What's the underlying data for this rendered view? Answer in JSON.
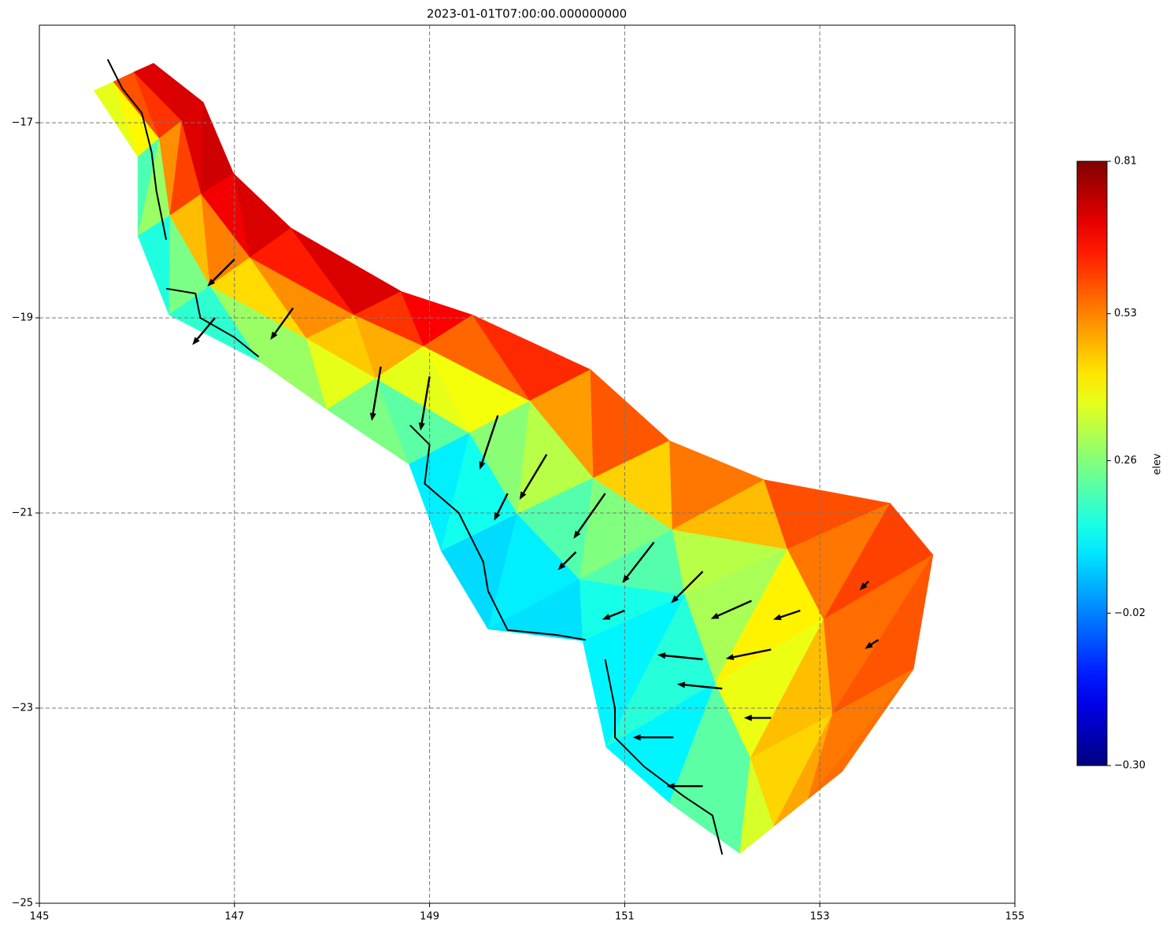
{
  "chart_data": {
    "type": "tripcolor",
    "title": "2023-01-01T07:00:00.000000000",
    "colorbar_label": "elev",
    "colormap": "jet",
    "clim": [
      -0.3,
      0.81
    ],
    "cticks": [
      0.81,
      0.53,
      0.26,
      {
        "value": -0.02,
        "label": "−0.02"
      },
      {
        "value": -0.3,
        "label": "−0.30"
      }
    ],
    "xlim": [
      145,
      155
    ],
    "ylim": [
      -25,
      -16
    ],
    "xticks": [
      145,
      147,
      149,
      151,
      153,
      155
    ],
    "yticks": [
      {
        "value": -17,
        "label": "−17"
      },
      {
        "value": -19,
        "label": "−19"
      },
      {
        "value": -21,
        "label": "−21"
      },
      {
        "value": -23,
        "label": "−23"
      },
      {
        "value": -25,
        "label": "−25"
      }
    ],
    "grid": true,
    "transects": [
      {
        "lon": [
          145.56,
          145.76,
          145.97,
          146.17
        ],
        "lat": [
          -16.67,
          -16.58,
          -16.48,
          -16.39
        ],
        "elev": [
          0.35,
          0.6,
          0.7,
          0.72
        ]
      },
      {
        "lon": [
          146.01,
          146.23,
          146.46,
          146.68
        ],
        "lat": [
          -17.35,
          -17.16,
          -16.98,
          -16.79
        ],
        "elev": [
          0.15,
          0.45,
          0.7,
          0.72
        ]
      },
      {
        "lon": [
          146.01,
          146.34,
          146.66,
          146.99
        ],
        "lat": [
          -18.16,
          -17.95,
          -17.73,
          -17.52
        ],
        "elev": [
          0.0,
          0.4,
          0.7,
          0.75
        ]
      },
      {
        "lon": [
          146.33,
          146.75,
          147.16,
          147.58
        ],
        "lat": [
          -18.97,
          -18.67,
          -18.38,
          -18.08
        ],
        "elev": [
          0.05,
          0.3,
          0.6,
          0.78
        ]
      },
      {
        "lon": [
          147.26,
          147.74,
          148.23,
          148.71
        ],
        "lat": [
          -19.45,
          -19.21,
          -18.97,
          -18.73
        ],
        "elev": [
          0.15,
          0.4,
          0.55,
          0.8
        ]
      },
      {
        "lon": [
          147.95,
          148.45,
          148.94,
          149.44
        ],
        "lat": [
          -19.94,
          -19.62,
          -19.29,
          -18.97
        ],
        "elev": [
          0.3,
          0.4,
          0.5,
          0.73
        ]
      },
      {
        "lon": [
          148.79,
          149.41,
          150.03,
          150.65
        ],
        "lat": [
          -20.5,
          -20.18,
          -19.85,
          -19.53
        ],
        "elev": [
          0.05,
          0.2,
          0.45,
          0.7
        ]
      },
      {
        "lon": [
          149.12,
          149.9,
          150.68,
          151.46
        ],
        "lat": [
          -21.39,
          -21.01,
          -20.64,
          -20.26
        ],
        "elev": [
          0.05,
          0.15,
          0.35,
          0.68
        ]
      },
      {
        "lon": [
          149.6,
          150.54,
          151.49,
          152.43
        ],
        "lat": [
          -22.19,
          -21.68,
          -21.17,
          -20.66
        ],
        "elev": [
          0.03,
          0.12,
          0.3,
          0.65
        ]
      },
      {
        "lon": [
          150.57,
          151.62,
          152.67,
          153.72
        ],
        "lat": [
          -22.31,
          -21.84,
          -21.37,
          -20.9
        ],
        "elev": [
          0.1,
          0.2,
          0.45,
          0.66
        ]
      },
      {
        "lon": [
          150.81,
          151.93,
          153.04,
          154.16
        ],
        "lat": [
          -23.4,
          -22.74,
          -22.09,
          -21.43
        ],
        "elev": [
          0.02,
          0.25,
          0.52,
          0.62
        ]
      },
      {
        "lon": [
          151.46,
          152.29,
          153.13,
          153.96
        ],
        "lat": [
          -23.97,
          -23.51,
          -23.06,
          -22.6
        ],
        "elev": [
          0.05,
          0.35,
          0.52,
          0.6
        ]
      },
      {
        "lon": [
          152.18,
          152.53,
          152.88,
          153.23
        ],
        "lat": [
          -24.49,
          -24.21,
          -23.93,
          -23.65
        ],
        "elev": [
          0.25,
          0.45,
          0.5,
          0.55
        ]
      }
    ],
    "coastline": {
      "color": "#000000",
      "lon": [
        145.7,
        145.85,
        146.05,
        146.15,
        146.2,
        146.3,
        null,
        146.3,
        146.6,
        146.65,
        147.0,
        147.25,
        null,
        148.8,
        149.0,
        148.95,
        149.3,
        149.55,
        149.6,
        149.8,
        150.3,
        150.6,
        null,
        150.8,
        150.9,
        150.9,
        151.2,
        151.6,
        151.9,
        152.0
      ],
      "lat": [
        -16.35,
        -16.65,
        -16.9,
        -17.3,
        -17.7,
        -18.2,
        null,
        -18.7,
        -18.75,
        -19.0,
        -19.2,
        -19.4,
        null,
        -20.1,
        -20.3,
        -20.7,
        -21.0,
        -21.5,
        -21.8,
        -22.2,
        -22.25,
        -22.3,
        null,
        -22.5,
        -23.0,
        -23.3,
        -23.6,
        -23.9,
        -24.1,
        -24.5
      ]
    },
    "quiver": {
      "color": "#000000",
      "lon": [
        148.5,
        149.0,
        149.7,
        150.2,
        150.8,
        151.3,
        151.8,
        152.3,
        152.5,
        151.8,
        152.0,
        151.5,
        151.8,
        149.8,
        150.5,
        151.0,
        147.0,
        147.6,
        146.8,
        153.5,
        152.8,
        153.6,
        152.5
      ],
      "lat": [
        -19.5,
        -19.6,
        -20.0,
        -20.4,
        -20.8,
        -21.3,
        -21.6,
        -21.9,
        -22.4,
        -22.5,
        -22.8,
        -23.3,
        -23.8,
        -20.8,
        -21.4,
        -22.0,
        -18.4,
        -18.9,
        -19.0,
        -21.7,
        -22.0,
        -22.3,
        -23.1
      ],
      "u": [
        -0.1,
        -0.1,
        -0.2,
        -0.3,
        -0.35,
        -0.35,
        -0.35,
        -0.45,
        -0.5,
        -0.5,
        -0.5,
        -0.45,
        -0.4,
        -0.15,
        -0.2,
        -0.25,
        -0.3,
        -0.25,
        -0.25,
        -0.1,
        -0.3,
        -0.15,
        -0.3
      ],
      "v": [
        -0.6,
        -0.6,
        -0.6,
        -0.5,
        -0.5,
        -0.45,
        -0.35,
        -0.2,
        -0.1,
        0.05,
        0.05,
        0,
        0,
        -0.3,
        -0.2,
        -0.1,
        -0.3,
        -0.35,
        -0.3,
        -0.1,
        -0.1,
        -0.1,
        0
      ]
    }
  }
}
